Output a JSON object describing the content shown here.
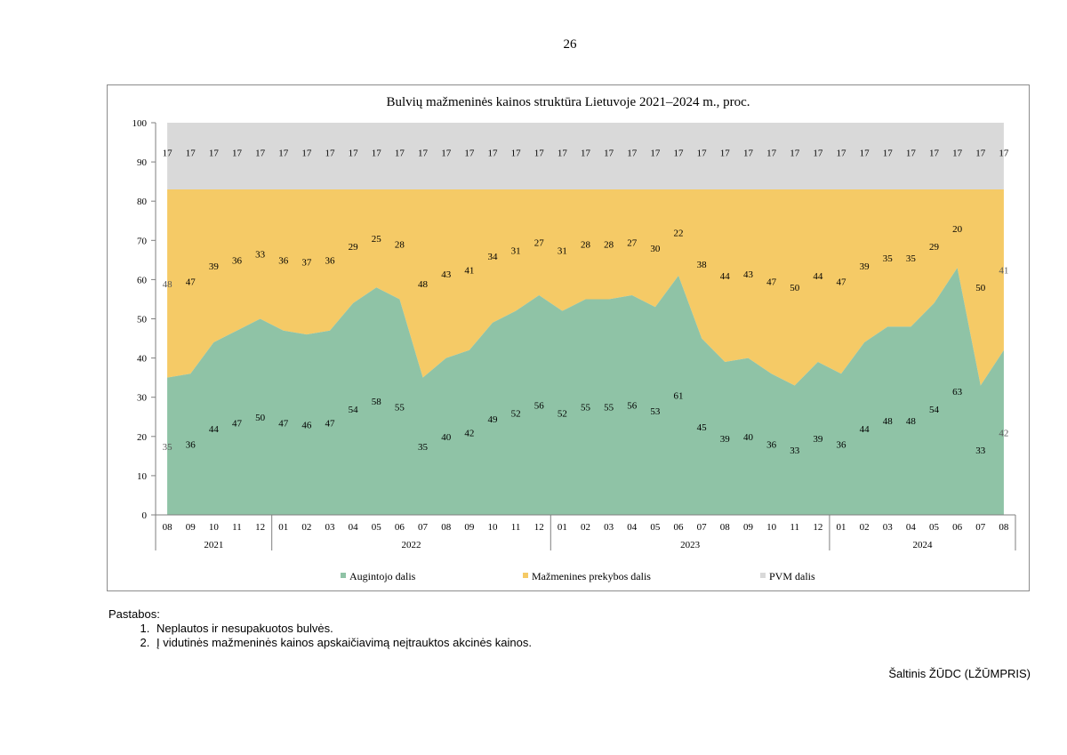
{
  "page": {
    "number": "26"
  },
  "notes": {
    "heading": "Pastabos:",
    "items": [
      "Neplautos ir nesupakuotos bulvės.",
      "Į vidutinės mažmeninės kainos apskaičiavimą neįtrauktos akcinės kainos."
    ]
  },
  "source": "Šaltinis ŽŪDC (LŽŪMPRIS)",
  "colors": {
    "grower": "#8fc3a6",
    "retail": "#f5ca66",
    "vat": "#d9d9d9"
  },
  "chart_data": {
    "type": "area",
    "stacked": true,
    "title": "Bulvių mažmeninės kainos struktūra Lietuvoje 2021–2024 m., proc.",
    "ylim": [
      0,
      100
    ],
    "yticks": [
      "0",
      "10",
      "20",
      "30",
      "40",
      "50",
      "60",
      "70",
      "80",
      "90",
      "100"
    ],
    "categories": [
      "08",
      "09",
      "10",
      "11",
      "12",
      "01",
      "02",
      "03",
      "04",
      "05",
      "06",
      "07",
      "08",
      "09",
      "10",
      "11",
      "12",
      "01",
      "02",
      "03",
      "04",
      "05",
      "06",
      "07",
      "08",
      "09",
      "10",
      "11",
      "12",
      "01",
      "02",
      "03",
      "04",
      "05",
      "06",
      "07",
      "08"
    ],
    "years": [
      {
        "label": "2021",
        "count": 5
      },
      {
        "label": "2022",
        "count": 12
      },
      {
        "label": "2023",
        "count": 12
      },
      {
        "label": "2024",
        "count": 8
      }
    ],
    "series": [
      {
        "name": "Augintojo dalis",
        "values": [
          35,
          36,
          44,
          47,
          50,
          47,
          46,
          47,
          54,
          58,
          55,
          35,
          40,
          42,
          49,
          52,
          56,
          52,
          55,
          55,
          56,
          53,
          61,
          45,
          39,
          40,
          36,
          33,
          39,
          36,
          44,
          48,
          48,
          54,
          63,
          33,
          42
        ]
      },
      {
        "name": "Mažmenines prekybos dalis",
        "values": [
          48,
          47,
          39,
          36,
          33,
          36,
          37,
          36,
          29,
          25,
          28,
          48,
          43,
          41,
          34,
          31,
          27,
          31,
          28,
          28,
          27,
          30,
          22,
          38,
          44,
          43,
          47,
          50,
          44,
          47,
          39,
          35,
          35,
          29,
          20,
          50,
          41
        ]
      },
      {
        "name": "PVM dalis",
        "values": [
          17,
          17,
          17,
          17,
          17,
          17,
          17,
          17,
          17,
          17,
          17,
          17,
          17,
          17,
          17,
          17,
          17,
          17,
          17,
          17,
          17,
          17,
          17,
          17,
          17,
          17,
          17,
          17,
          17,
          17,
          17,
          17,
          17,
          17,
          17,
          17,
          17
        ]
      }
    ],
    "legend_position": "bottom"
  }
}
